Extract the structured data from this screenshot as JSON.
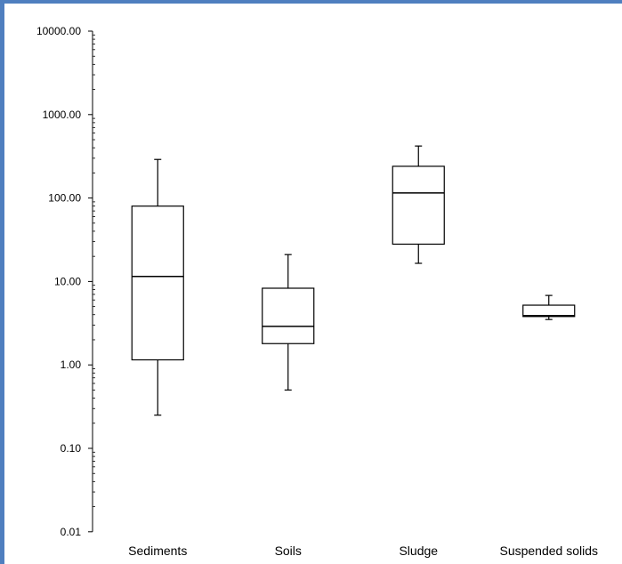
{
  "chart_data": {
    "type": "box",
    "y_scale": "log",
    "ylim": [
      0.01,
      10000
    ],
    "y_ticks": [
      "0.01",
      "0.10",
      "1.00",
      "10.00",
      "100.00",
      "1000.00",
      "10000.00"
    ],
    "categories": [
      "Sediments",
      "Soils",
      "Sludge",
      "Suspended solids"
    ],
    "boxes": [
      {
        "category": "Sediments",
        "min": 0.25,
        "q1": 1.15,
        "median": 11.5,
        "q3": 80,
        "max": 290
      },
      {
        "category": "Soils",
        "min": 0.5,
        "q1": 1.8,
        "median": 2.9,
        "q3": 8.3,
        "max": 21
      },
      {
        "category": "Sludge",
        "min": 16.5,
        "q1": 28,
        "median": 115,
        "q3": 240,
        "max": 420
      },
      {
        "category": "Suspended solids",
        "min": 3.5,
        "q1": 3.8,
        "median": 3.9,
        "q3": 5.2,
        "max": 6.8
      }
    ],
    "colors": {
      "frame": "#4f7fbf",
      "axis": "#000000",
      "box_fill": "#ffffff",
      "box_stroke": "#000000"
    }
  }
}
